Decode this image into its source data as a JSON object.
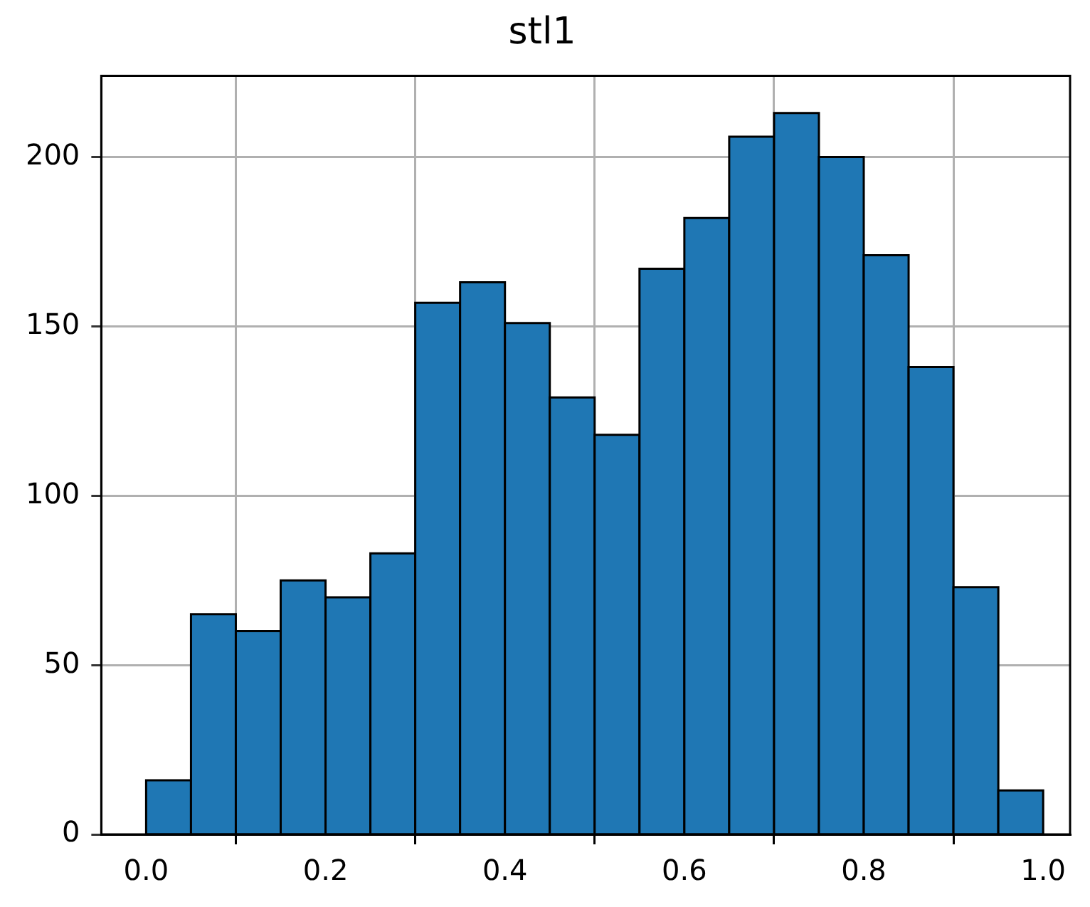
{
  "chart_data": {
    "type": "histogram",
    "title": "stl1",
    "bins": [
      0,
      0.05,
      0.1,
      0.15,
      0.2,
      0.25,
      0.3,
      0.35,
      0.4,
      0.45,
      0.5,
      0.55,
      0.6,
      0.65,
      0.7,
      0.75,
      0.8,
      0.85,
      0.9,
      0.95,
      1.0
    ],
    "values": [
      16,
      65,
      60,
      75,
      70,
      83,
      157,
      163,
      151,
      129,
      118,
      167,
      182,
      206,
      213,
      200,
      171,
      138,
      73,
      13
    ],
    "color": "#1f77b4",
    "xlim": [
      -0.05,
      1.03
    ],
    "ylim": [
      0,
      224
    ],
    "xticks": [
      {
        "value": 0,
        "label": "0.0"
      },
      {
        "value": 0.2,
        "label": "0.2"
      },
      {
        "value": 0.4,
        "label": "0.4"
      },
      {
        "value": 0.6,
        "label": "0.6"
      },
      {
        "value": 0.8,
        "label": "0.8"
      },
      {
        "value": 1,
        "label": "1.0"
      }
    ],
    "yticks": [
      0,
      50,
      100,
      150,
      200
    ],
    "grid": true,
    "legend": false
  }
}
